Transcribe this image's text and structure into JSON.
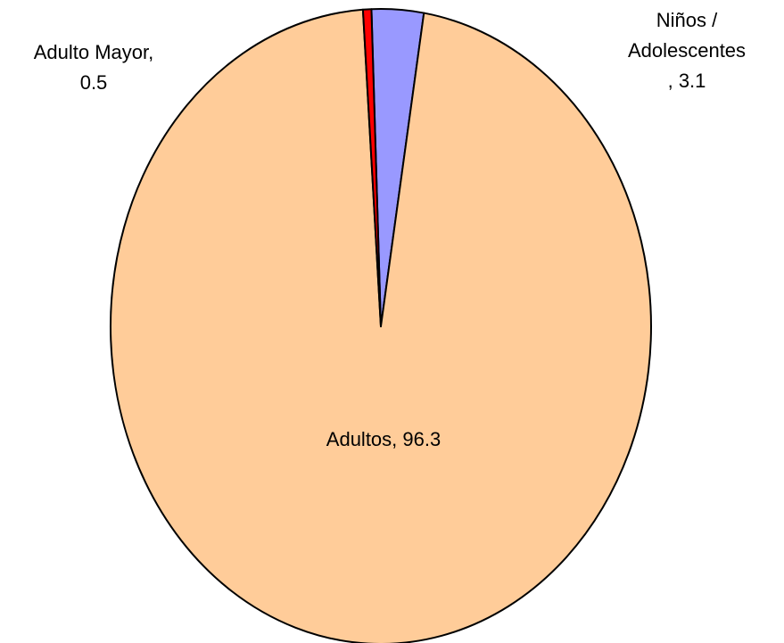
{
  "chart_data": {
    "type": "pie",
    "title": "",
    "start_angle_deg": -2,
    "direction": "clockwise",
    "slices": [
      {
        "name": "Niños / Adolescentes",
        "value": 3.1,
        "color": "#9999ff",
        "label_lines": [
          "Niños /",
          "Adolescentes",
          ", 3.1"
        ]
      },
      {
        "name": "Adultos",
        "value": 96.3,
        "color": "#ffcc99",
        "label_lines": [
          "Adultos, 96.3"
        ]
      },
      {
        "name": "Adulto Mayor",
        "value": 0.5,
        "color": "#ff0000",
        "label_lines": [
          "Adulto Mayor,",
          "0.5"
        ]
      }
    ],
    "legend": "none",
    "data_labels": "category name and value"
  }
}
